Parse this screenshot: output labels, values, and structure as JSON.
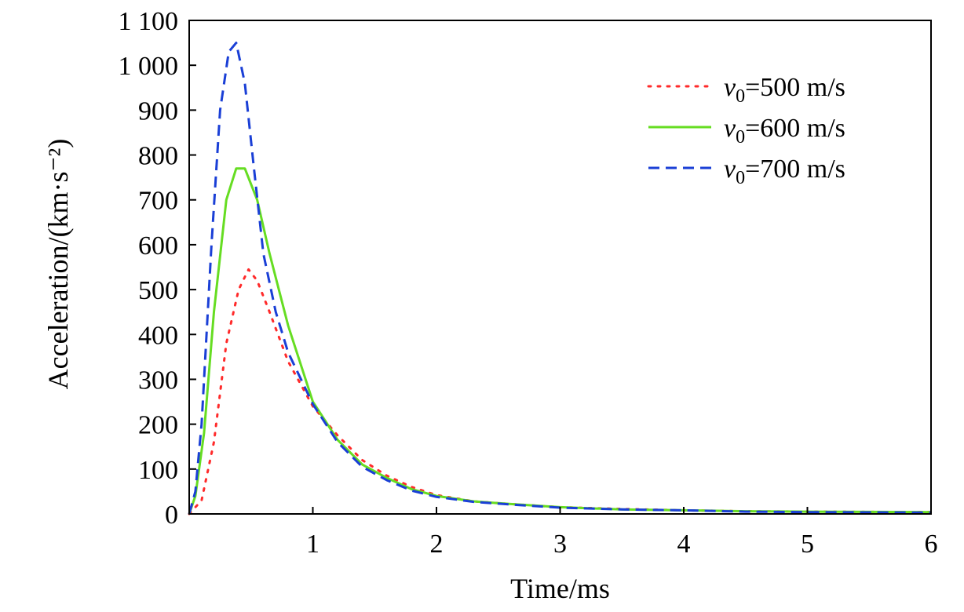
{
  "chart_data": {
    "type": "line",
    "title": "",
    "xlabel": "Time/ms",
    "ylabel": "Acceleration/(km·s⁻²)",
    "xlim": [
      0,
      6
    ],
    "ylim": [
      0,
      1100
    ],
    "xticks": [
      {
        "value": 1,
        "label": "1"
      },
      {
        "value": 2,
        "label": "2"
      },
      {
        "value": 3,
        "label": "3"
      },
      {
        "value": 4,
        "label": "4"
      },
      {
        "value": 5,
        "label": "5"
      },
      {
        "value": 6,
        "label": "6"
      }
    ],
    "yticks": [
      {
        "value": 0,
        "label": "0"
      },
      {
        "value": 100,
        "label": "100"
      },
      {
        "value": 200,
        "label": "200"
      },
      {
        "value": 300,
        "label": "300"
      },
      {
        "value": 400,
        "label": "400"
      },
      {
        "value": 500,
        "label": "500"
      },
      {
        "value": 600,
        "label": "600"
      },
      {
        "value": 700,
        "label": "700"
      },
      {
        "value": 800,
        "label": "800"
      },
      {
        "value": 900,
        "label": "900"
      },
      {
        "value": 1000,
        "label": "1 000"
      },
      {
        "value": 1100,
        "label": "1 100"
      }
    ],
    "legend_position": "top-right",
    "series": [
      {
        "name": "v0=500 m/s",
        "legend_var": "v",
        "legend_sub": "0",
        "legend_rest": "=500 m/s",
        "color": "#ff2a2a",
        "style": "dotted",
        "points": [
          [
            0,
            0
          ],
          [
            0.1,
            30
          ],
          [
            0.2,
            160
          ],
          [
            0.3,
            380
          ],
          [
            0.4,
            500
          ],
          [
            0.48,
            545
          ],
          [
            0.55,
            520
          ],
          [
            0.65,
            450
          ],
          [
            0.8,
            340
          ],
          [
            1.0,
            240
          ],
          [
            1.2,
            175
          ],
          [
            1.4,
            120
          ],
          [
            1.6,
            85
          ],
          [
            1.8,
            60
          ],
          [
            2.0,
            42
          ],
          [
            2.3,
            28
          ],
          [
            2.6,
            22
          ],
          [
            3.0,
            15
          ],
          [
            3.5,
            11
          ],
          [
            4.0,
            8
          ],
          [
            4.5,
            6
          ],
          [
            5.0,
            5
          ],
          [
            6.0,
            4
          ]
        ]
      },
      {
        "name": "v0=600 m/s",
        "legend_var": "v",
        "legend_sub": "0",
        "legend_rest": "=600 m/s",
        "color": "#66dd22",
        "style": "solid",
        "points": [
          [
            0,
            0
          ],
          [
            0.05,
            40
          ],
          [
            0.12,
            180
          ],
          [
            0.2,
            450
          ],
          [
            0.3,
            700
          ],
          [
            0.38,
            770
          ],
          [
            0.45,
            770
          ],
          [
            0.55,
            700
          ],
          [
            0.65,
            580
          ],
          [
            0.8,
            420
          ],
          [
            1.0,
            250
          ],
          [
            1.2,
            165
          ],
          [
            1.4,
            110
          ],
          [
            1.6,
            80
          ],
          [
            1.8,
            55
          ],
          [
            2.0,
            40
          ],
          [
            2.3,
            28
          ],
          [
            2.6,
            22
          ],
          [
            3.0,
            15
          ],
          [
            3.5,
            10
          ],
          [
            4.0,
            8
          ],
          [
            4.5,
            6
          ],
          [
            5.0,
            5
          ],
          [
            6.0,
            4
          ]
        ]
      },
      {
        "name": "v0=700 m/s",
        "legend_var": "v",
        "legend_sub": "0",
        "legend_rest": "=700 m/s",
        "color": "#1a3fd6",
        "style": "dashed",
        "points": [
          [
            0,
            0
          ],
          [
            0.05,
            50
          ],
          [
            0.1,
            200
          ],
          [
            0.18,
            600
          ],
          [
            0.25,
            900
          ],
          [
            0.32,
            1030
          ],
          [
            0.38,
            1050
          ],
          [
            0.45,
            960
          ],
          [
            0.52,
            780
          ],
          [
            0.6,
            580
          ],
          [
            0.7,
            450
          ],
          [
            0.8,
            360
          ],
          [
            1.0,
            245
          ],
          [
            1.2,
            160
          ],
          [
            1.4,
            105
          ],
          [
            1.6,
            75
          ],
          [
            1.8,
            52
          ],
          [
            2.0,
            38
          ],
          [
            2.3,
            27
          ],
          [
            2.6,
            21
          ],
          [
            3.0,
            14
          ],
          [
            3.5,
            10
          ],
          [
            4.0,
            8
          ],
          [
            4.5,
            5
          ],
          [
            5.0,
            4
          ],
          [
            6.0,
            3
          ]
        ]
      }
    ]
  }
}
